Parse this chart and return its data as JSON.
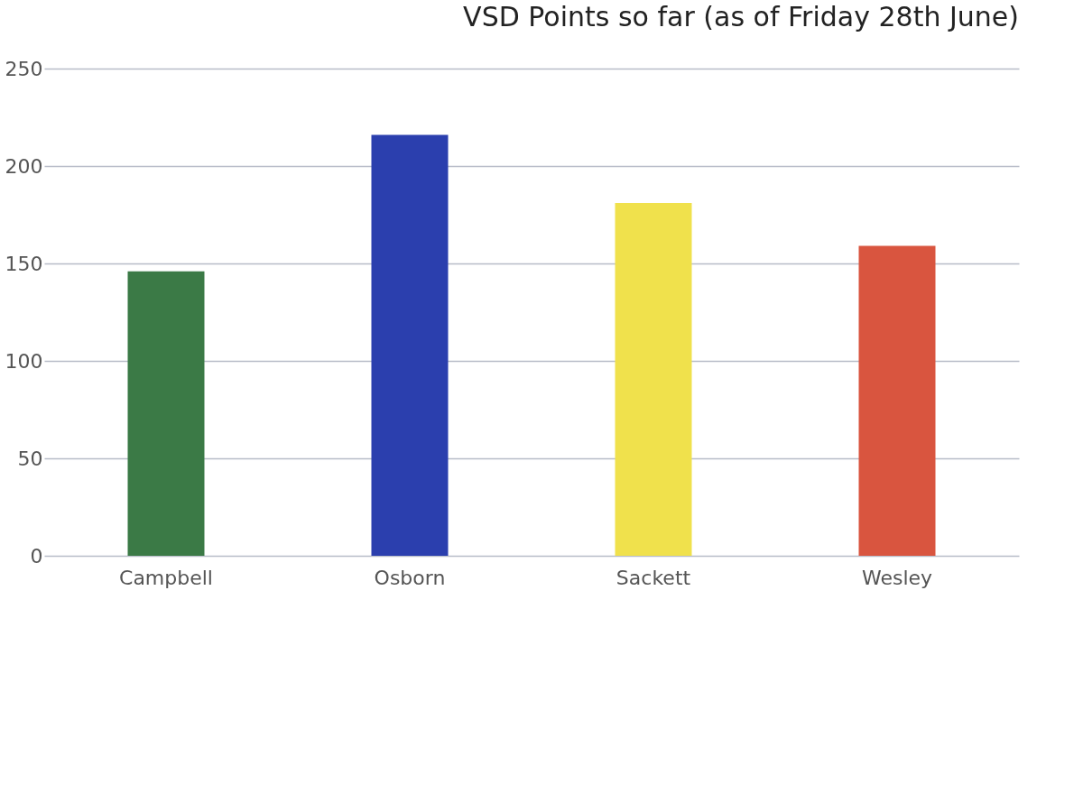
{
  "chart_data": {
    "type": "bar",
    "title": "VSD Points so far (as of Friday 28th June)",
    "categories": [
      "Campbell",
      "Osborn",
      "Sackett",
      "Wesley"
    ],
    "values": [
      146,
      216,
      181,
      159
    ],
    "colors": [
      "#3b7a46",
      "#2b3fae",
      "#f0e14c",
      "#d9553f"
    ],
    "ylim": [
      0,
      250
    ],
    "yticks": [
      0,
      50,
      100,
      150,
      200,
      250
    ],
    "grid": "y"
  }
}
